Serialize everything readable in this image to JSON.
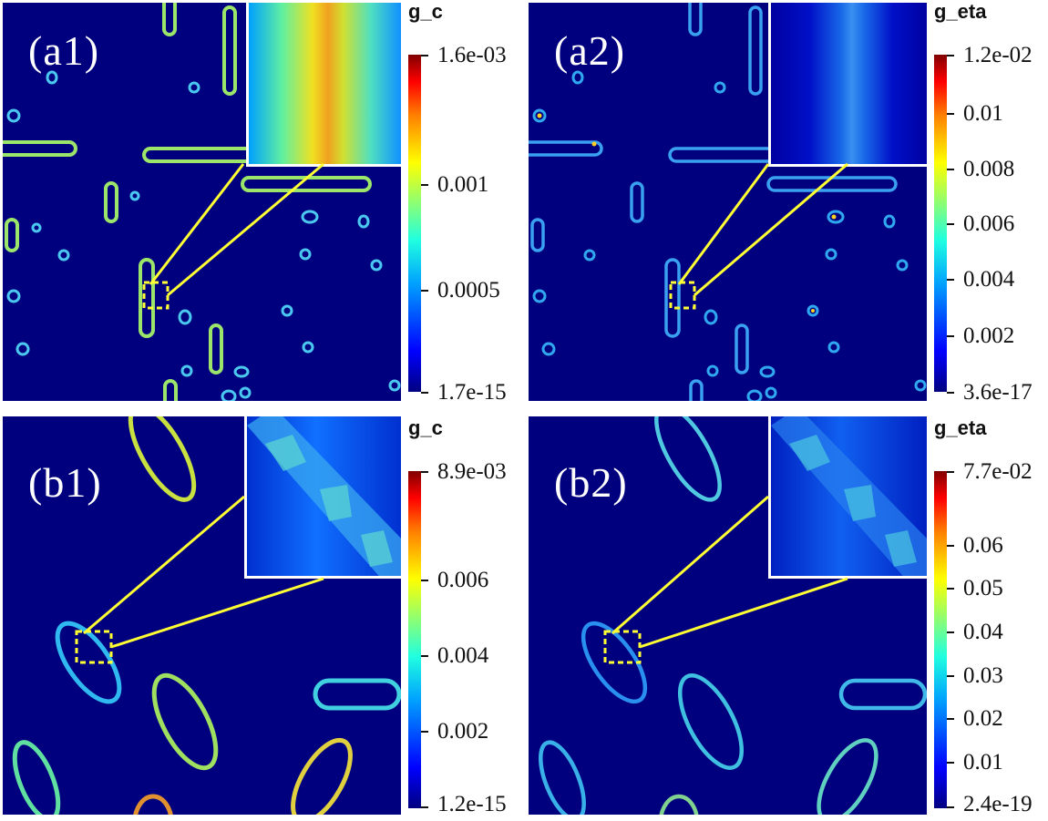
{
  "figure": {
    "panels": {
      "a1": {
        "label": "(a1)",
        "colorbar_title": "g_c",
        "ticks": [
          "1.6e-03",
          "0.001",
          "0.0005",
          "1.7e-15"
        ]
      },
      "a2": {
        "label": "(a2)",
        "colorbar_title": "g_eta",
        "ticks": [
          "1.2e-02",
          "0.01",
          "0.008",
          "0.006",
          "0.004",
          "0.002",
          "3.6e-17"
        ]
      },
      "b1": {
        "label": "(b1)",
        "colorbar_title": "g_c",
        "ticks": [
          "8.9e-03",
          "0.006",
          "0.004",
          "0.002",
          "1.2e-15"
        ]
      },
      "b2": {
        "label": "(b2)",
        "colorbar_title": "g_eta",
        "ticks": [
          "7.7e-02",
          "0.06",
          "0.05",
          "0.04",
          "0.03",
          "0.02",
          "0.01",
          "2.4e-19"
        ]
      }
    },
    "colors": {
      "background_field": "#00007f",
      "zoom_lines": "#ffff33",
      "inset_border": "#ffffff"
    }
  }
}
